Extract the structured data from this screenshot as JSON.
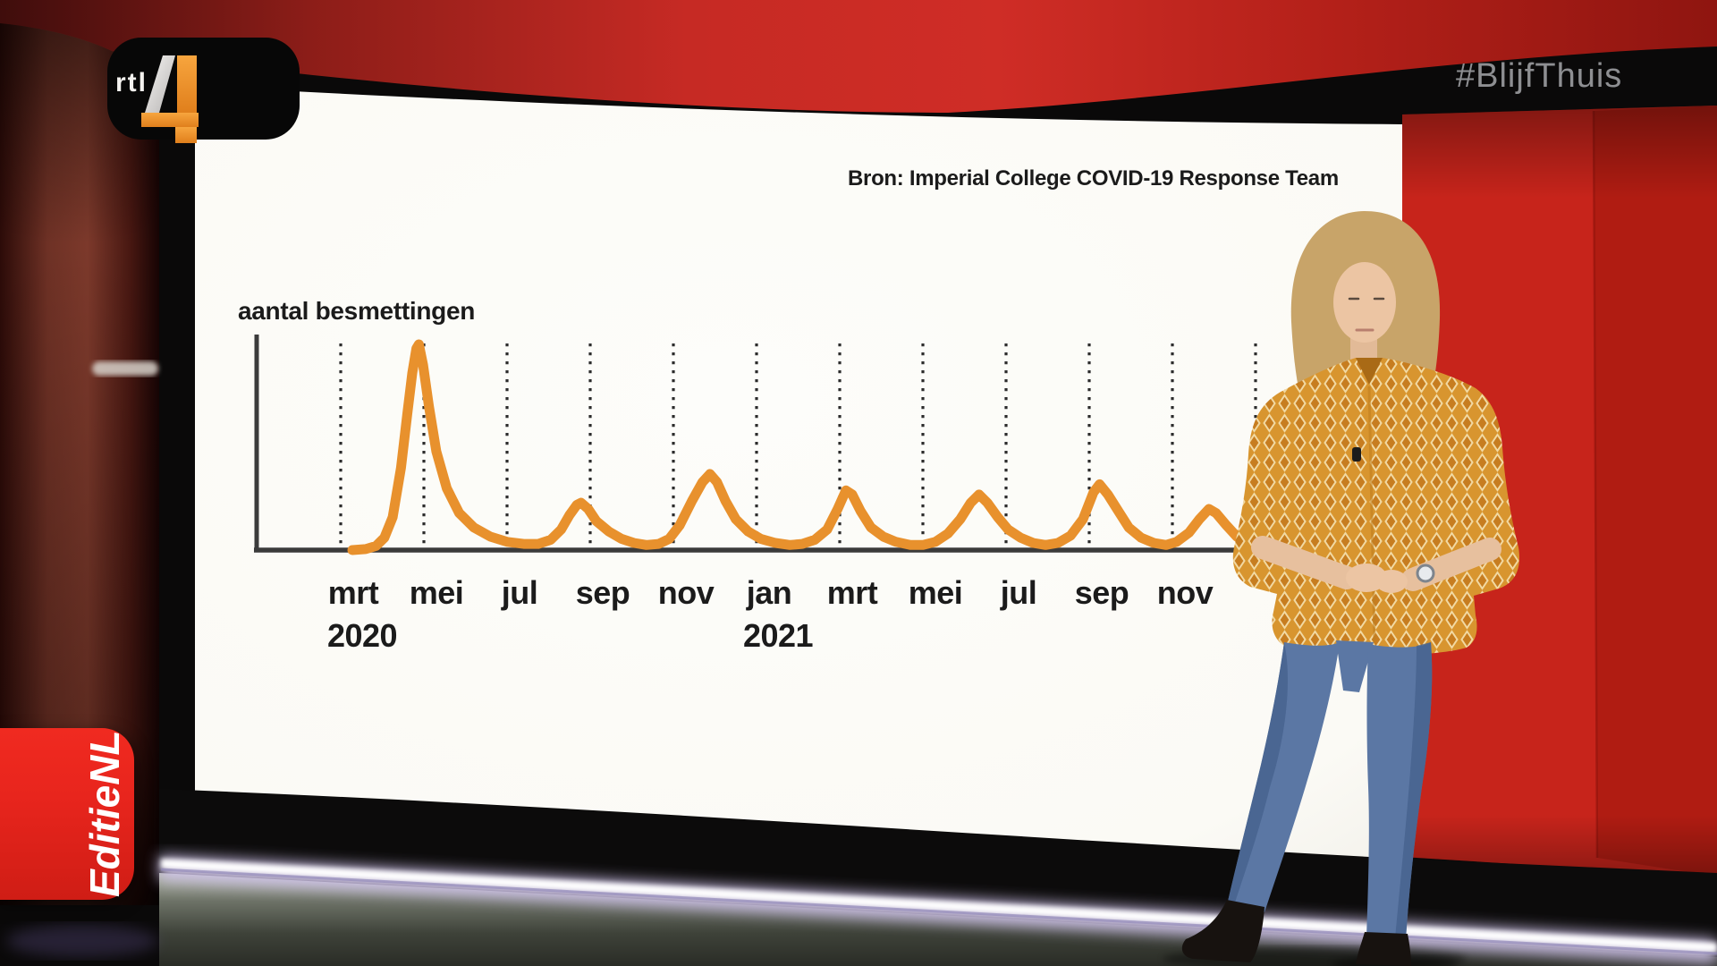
{
  "broadcast": {
    "channel": {
      "name": "RTL 4",
      "text": "rtl",
      "number": "4"
    },
    "hashtag": "#BlijfThuis",
    "program": "EditieNL"
  },
  "chart": {
    "source": "Bron: Imperial College COVID-19 Response Team",
    "y_axis_label": "aantal besmettingen",
    "x_axis": {
      "tick_labels": [
        "mrt",
        "mei",
        "jul",
        "sep",
        "nov",
        "jan",
        "mrt",
        "mei",
        "jul",
        "sep",
        "nov"
      ],
      "year_labels": [
        {
          "text": "2020",
          "tick_index": 0
        },
        {
          "text": "2021",
          "tick_index": 5
        }
      ]
    }
  },
  "chart_data": {
    "type": "line",
    "title": "",
    "ylabel": "aantal besmettingen",
    "x_unit": "months since mrt 2020; labeled ticks every 2 months, mrt 2020 - nov 2021",
    "y_scale": "relative infections, first wave peak = 100 (no numeric axis shown)",
    "gridlines": {
      "vertical_dotted": 12,
      "horizontal": 0
    },
    "legend": "none",
    "peaks": [
      {
        "t_months": 1.85,
        "value": 100,
        "approx_date": "apr 2020"
      },
      {
        "t_months": 5.74,
        "value": 23,
        "approx_date": "late aug/sep 2020"
      },
      {
        "t_months": 8.86,
        "value": 37,
        "approx_date": "early dec 2020"
      },
      {
        "t_months": 12.06,
        "value": 30,
        "approx_date": "mid mrt 2021"
      },
      {
        "t_months": 15.3,
        "value": 27,
        "approx_date": "jun 2021"
      },
      {
        "t_months": 18.2,
        "value": 32,
        "approx_date": "sep 2021"
      },
      {
        "t_months": 20.9,
        "value": 20,
        "approx_date": "dec 2021"
      }
    ],
    "series": [
      {
        "name": "aantal besmettingen",
        "color": "#e8912d",
        "points": [
          [
            0.28,
            0
          ],
          [
            0.6,
            0.5
          ],
          [
            0.85,
            2
          ],
          [
            1.05,
            6
          ],
          [
            1.25,
            16
          ],
          [
            1.45,
            40
          ],
          [
            1.6,
            66
          ],
          [
            1.72,
            86
          ],
          [
            1.82,
            98
          ],
          [
            1.88,
            100
          ],
          [
            1.98,
            90
          ],
          [
            2.12,
            70
          ],
          [
            2.3,
            48
          ],
          [
            2.55,
            30
          ],
          [
            2.85,
            18
          ],
          [
            3.2,
            11
          ],
          [
            3.6,
            6.5
          ],
          [
            4.0,
            4
          ],
          [
            4.4,
            3
          ],
          [
            4.75,
            3
          ],
          [
            5.05,
            5
          ],
          [
            5.3,
            10
          ],
          [
            5.5,
            17
          ],
          [
            5.68,
            22
          ],
          [
            5.78,
            23
          ],
          [
            5.95,
            20
          ],
          [
            6.15,
            14
          ],
          [
            6.45,
            9
          ],
          [
            6.75,
            5.5
          ],
          [
            7.05,
            3.5
          ],
          [
            7.35,
            2.5
          ],
          [
            7.65,
            3
          ],
          [
            7.9,
            5.5
          ],
          [
            8.15,
            12
          ],
          [
            8.45,
            24
          ],
          [
            8.7,
            33
          ],
          [
            8.88,
            37
          ],
          [
            9.05,
            33
          ],
          [
            9.25,
            24
          ],
          [
            9.5,
            15
          ],
          [
            9.8,
            9
          ],
          [
            10.1,
            5.5
          ],
          [
            10.45,
            3.5
          ],
          [
            10.8,
            2.5
          ],
          [
            11.1,
            3
          ],
          [
            11.4,
            5
          ],
          [
            11.7,
            10
          ],
          [
            11.95,
            20
          ],
          [
            12.15,
            29
          ],
          [
            12.3,
            27
          ],
          [
            12.5,
            19
          ],
          [
            12.75,
            11
          ],
          [
            13.05,
            6.5
          ],
          [
            13.35,
            4
          ],
          [
            13.7,
            2.5
          ],
          [
            14.0,
            2.5
          ],
          [
            14.3,
            4
          ],
          [
            14.6,
            8
          ],
          [
            14.9,
            15
          ],
          [
            15.15,
            23
          ],
          [
            15.35,
            27
          ],
          [
            15.55,
            23
          ],
          [
            15.8,
            16
          ],
          [
            16.05,
            10
          ],
          [
            16.35,
            6
          ],
          [
            16.65,
            3.5
          ],
          [
            16.95,
            2.5
          ],
          [
            17.25,
            3.5
          ],
          [
            17.55,
            7
          ],
          [
            17.85,
            15
          ],
          [
            18.1,
            28
          ],
          [
            18.25,
            32
          ],
          [
            18.45,
            27
          ],
          [
            18.7,
            19
          ],
          [
            18.95,
            11
          ],
          [
            19.25,
            6
          ],
          [
            19.55,
            3.5
          ],
          [
            19.85,
            2.5
          ],
          [
            20.1,
            4
          ],
          [
            20.4,
            8.5
          ],
          [
            20.65,
            15
          ],
          [
            20.88,
            20
          ],
          [
            21.05,
            18
          ],
          [
            21.3,
            12
          ],
          [
            21.55,
            6.5
          ],
          [
            21.8,
            3
          ],
          [
            22.05,
            1.5
          ]
        ]
      }
    ]
  },
  "colors": {
    "accent_orange": "#e8912d",
    "chart_text": "#1b1b1b",
    "screen_white": "#fbfaf5",
    "studio_red_top": "#c62a24",
    "studio_red_panel": "#c7241b",
    "studio_red_panel_dark": "#ad1c12",
    "maroon_wall": "#6e3125",
    "editienl_red": "#e8251d",
    "rtl_orange": "#f29027",
    "hashtag_gray": "#9a9b9e",
    "denim_blue": "#5b77a4",
    "blouse_mustard": "#d8952f",
    "skin": "#ecc5a3",
    "hair_blonde": "#c8a469",
    "glow_lavender": "#cfc2ea"
  }
}
